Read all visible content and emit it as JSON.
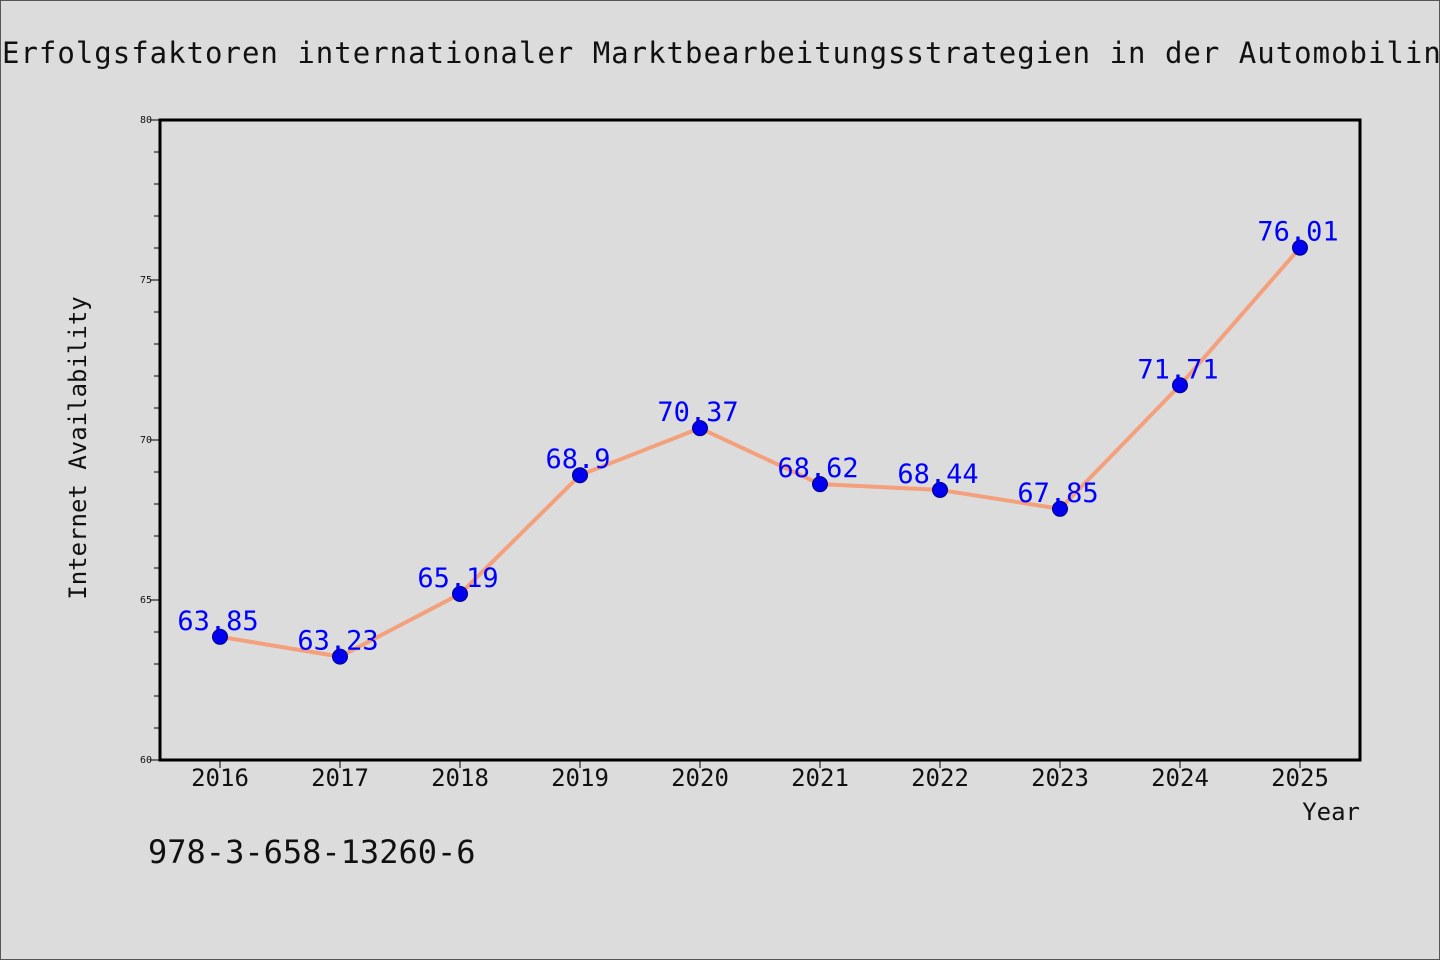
{
  "title": "Erfolgsfaktoren internationaler Marktbearbeitungsstrategien in der Automobilindustrie",
  "isbn": "978-3-658-13260-6",
  "colors": {
    "background": "#dcdcdc",
    "line": "#f4a07c",
    "marker": "#0000ee",
    "data_label": "#0000ff",
    "axis": "#000000"
  },
  "chart_data": {
    "type": "line",
    "title": "Erfolgsfaktoren internationaler Marktbearbeitungsstrategien in der Automobilindustrie",
    "xlabel": "Year",
    "ylabel": "Internet Availability",
    "categories": [
      "2016",
      "2017",
      "2018",
      "2019",
      "2020",
      "2021",
      "2022",
      "2023",
      "2024",
      "2025"
    ],
    "series": [
      {
        "values": [
          63.85,
          63.23,
          65.19,
          68.9,
          70.37,
          68.62,
          68.44,
          67.85,
          71.71,
          76.01
        ],
        "labels": [
          "63.85",
          "63.23",
          "65.19",
          "68.9",
          "70.37",
          "68.62",
          "68.44",
          "67.85",
          "71.71",
          "76.01"
        ]
      }
    ],
    "ylim": [
      60,
      80
    ],
    "yticks": [
      "60",
      "65",
      "70",
      "75",
      "80"
    ],
    "grid": false,
    "legend": "none"
  }
}
